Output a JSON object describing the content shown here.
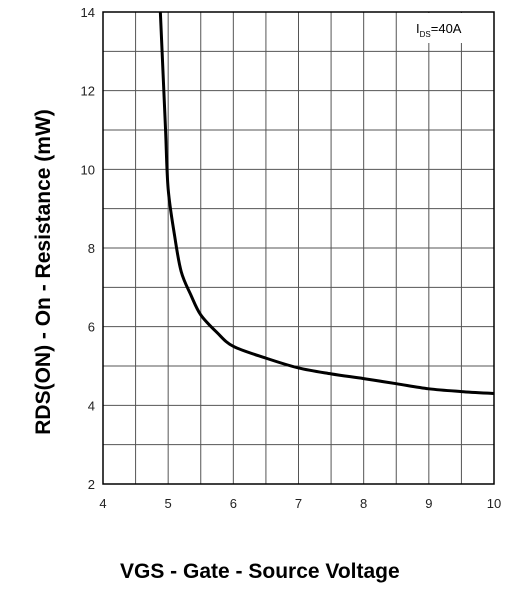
{
  "chart_data": {
    "type": "line",
    "xlabel": "VGS - Gate - Source Voltage",
    "ylabel": "RDS(ON) - On - Resistance (mW)",
    "xlim": [
      4,
      10
    ],
    "ylim": [
      2,
      14
    ],
    "x_ticks": [
      "4",
      "5",
      "6",
      "7",
      "8",
      "9",
      "10"
    ],
    "y_ticks": [
      "2",
      "4",
      "6",
      "8",
      "10",
      "12",
      "14"
    ],
    "grid": true,
    "annotation": {
      "main": "I",
      "sub": "DS",
      "rest": "=40A"
    },
    "series": [
      {
        "x": [
          4.88,
          4.92,
          4.96,
          5.0,
          5.1,
          5.2,
          5.35,
          5.5,
          5.75,
          6.0,
          6.5,
          7.0,
          7.5,
          8.0,
          8.5,
          9.0,
          9.5,
          10.0
        ],
        "y": [
          14.0,
          12.5,
          11.0,
          9.5,
          8.3,
          7.4,
          6.8,
          6.3,
          5.85,
          5.5,
          5.2,
          4.95,
          4.8,
          4.68,
          4.55,
          4.42,
          4.35,
          4.3
        ],
        "color": "#000000"
      }
    ]
  }
}
